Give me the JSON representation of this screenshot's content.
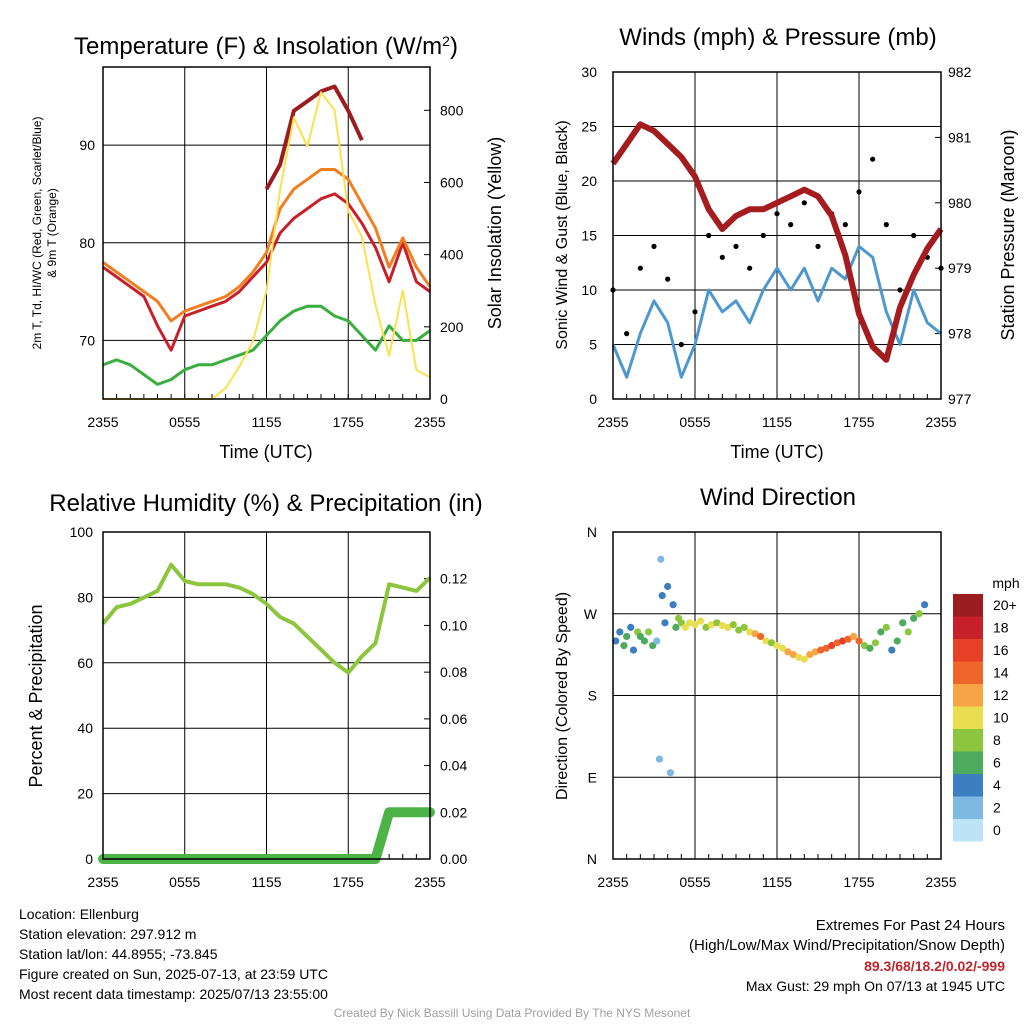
{
  "chart_data": [
    {
      "type": "line",
      "title": "Temperature (F) & Insolation (W/m²)",
      "title_main": "Temperature (F) & Insolation (W/m",
      "title_sup": "2",
      "title_end": ")",
      "xlabel": "Time (UTC)",
      "ylabel_left_line1": "2m T, Td, HI/WC (Red, Green, Scarlet/Blue)",
      "ylabel_left_line2": "& 9m T (Orange)",
      "ylabel_right": "Solar Insolation (Yellow)",
      "x_ticks": [
        "2355",
        "0555",
        "1155",
        "1755",
        "2355"
      ],
      "y_left_ticks": [
        70,
        80,
        90
      ],
      "y_left_range": [
        64,
        98
      ],
      "y_right_ticks": [
        0,
        200,
        400,
        600,
        800
      ],
      "y_right_range": [
        0,
        920
      ],
      "x_hours": [
        0,
        1,
        2,
        3,
        4,
        5,
        6,
        7,
        8,
        9,
        10,
        11,
        12,
        13,
        14,
        15,
        16,
        17,
        18,
        19,
        20,
        21,
        22,
        23,
        24
      ],
      "series": [
        {
          "name": "2m T",
          "color": "#c8202a",
          "axis": "left",
          "width": 3,
          "values": [
            77.5,
            76.5,
            75.5,
            74.5,
            71.5,
            69,
            72.5,
            73,
            73.5,
            74,
            75,
            76.5,
            78,
            81,
            82.5,
            83.5,
            84.5,
            85,
            84,
            82,
            79.5,
            76,
            80,
            76,
            75
          ]
        },
        {
          "name": "9m T",
          "color": "#f07f22",
          "axis": "left",
          "width": 3,
          "values": [
            78,
            77,
            76,
            75,
            74,
            72,
            73,
            73.5,
            74,
            74.5,
            75.5,
            77,
            79,
            83.5,
            85.5,
            86.5,
            87.5,
            87.5,
            86.5,
            84,
            81.5,
            77.5,
            80.5,
            77.5,
            75.5
          ]
        },
        {
          "name": "Heat Index",
          "color": "#9b1c1f",
          "axis": "left",
          "width": 4,
          "values": [
            null,
            null,
            null,
            null,
            null,
            null,
            null,
            null,
            null,
            null,
            null,
            null,
            85.5,
            88,
            93.5,
            94.5,
            95.5,
            96,
            93.5,
            90.5,
            null,
            null,
            null,
            85,
            null
          ]
        },
        {
          "name": "Dew Point",
          "color": "#3aae3f",
          "axis": "left",
          "width": 3,
          "values": [
            67.5,
            68,
            67.5,
            66.5,
            65.5,
            66,
            67,
            67.5,
            67.5,
            68,
            68.5,
            69,
            70.5,
            72,
            73,
            73.5,
            73.5,
            72.5,
            72,
            70.5,
            69,
            71.5,
            70,
            70,
            71
          ]
        },
        {
          "name": "Solar Insolation",
          "color": "#fbe150",
          "axis": "right",
          "width": 2,
          "values": [
            0,
            0,
            0,
            0,
            0,
            0,
            0,
            0,
            0,
            30,
            90,
            160,
            300,
            580,
            780,
            700,
            850,
            800,
            520,
            450,
            260,
            120,
            300,
            80,
            60
          ]
        }
      ]
    },
    {
      "type": "scatter",
      "title": "Winds (mph) & Pressure (mb)",
      "xlabel": "Time (UTC)",
      "ylabel_left": "Sonic Wind & Gust (Blue, Black)",
      "ylabel_right": "Station Pressure (Maroon)",
      "x_ticks": [
        "2355",
        "0555",
        "1155",
        "1755",
        "2355"
      ],
      "y_left_ticks": [
        0,
        5,
        10,
        15,
        20,
        25,
        30
      ],
      "y_left_range": [
        0,
        30
      ],
      "y_right_ticks": [
        977,
        978,
        979,
        980,
        981,
        982
      ],
      "y_right_range": [
        977,
        982
      ],
      "x_hours": [
        0,
        1,
        2,
        3,
        4,
        5,
        6,
        7,
        8,
        9,
        10,
        11,
        12,
        13,
        14,
        15,
        16,
        17,
        18,
        19,
        20,
        21,
        22,
        23,
        24
      ],
      "wind": [
        5,
        2,
        6,
        9,
        7,
        2,
        5,
        10,
        8,
        9,
        7,
        10,
        12,
        10,
        12,
        9,
        12,
        11,
        14,
        13,
        8,
        5,
        10,
        7,
        6
      ],
      "gust": [
        10,
        6,
        12,
        14,
        11,
        5,
        8,
        15,
        13,
        14,
        12,
        15,
        17,
        16,
        18,
        14,
        17,
        16,
        19,
        22,
        16,
        10,
        15,
        13,
        12
      ],
      "pressure": [
        980.6,
        980.9,
        981.2,
        981.1,
        980.9,
        980.7,
        980.4,
        979.9,
        979.6,
        979.8,
        979.9,
        979.9,
        980.0,
        980.1,
        980.2,
        980.1,
        979.8,
        979.2,
        978.3,
        977.8,
        977.6,
        978.4,
        978.9,
        979.3,
        979.6
      ]
    },
    {
      "type": "line",
      "title": "Relative Humidity (%) & Precipitation (in)",
      "ylabel_left": "Percent & Precipitation",
      "x_ticks": [
        "2355",
        "0555",
        "1155",
        "1755",
        "2355"
      ],
      "y_left_ticks": [
        0,
        20,
        40,
        60,
        80,
        100
      ],
      "y_left_range": [
        0,
        100
      ],
      "y_right_ticks": [
        "0.00",
        "0.02",
        "0.04",
        "0.06",
        "0.08",
        "0.10",
        "0.12"
      ],
      "y_right_range": [
        0,
        0.14
      ],
      "x_hours": [
        0,
        1,
        2,
        3,
        4,
        5,
        6,
        7,
        8,
        9,
        10,
        11,
        12,
        13,
        14,
        15,
        16,
        17,
        18,
        19,
        20,
        21,
        22,
        23,
        24
      ],
      "series": [
        {
          "name": "Relative Humidity",
          "color": "#8cc63f",
          "values": [
            72,
            77,
            78,
            80,
            82,
            90,
            85,
            84,
            84,
            84,
            83,
            81,
            78,
            74,
            72,
            68,
            64,
            60,
            57,
            62,
            66,
            84,
            83,
            82,
            86
          ]
        },
        {
          "name": "Precipitation",
          "color": "#4db347",
          "values": [
            0,
            0,
            0,
            0,
            0,
            0,
            0,
            0,
            0,
            0,
            0,
            0,
            0,
            0,
            0,
            0,
            0,
            0,
            0,
            0,
            0,
            0.02,
            0.02,
            0.02,
            0.02
          ]
        }
      ]
    },
    {
      "type": "scatter",
      "title": "Wind Direction",
      "ylabel": "Direction (Colored By Speed)",
      "x_ticks": [
        "2355",
        "0555",
        "1155",
        "1755",
        "2355"
      ],
      "y_ticks": [
        "N",
        "W",
        "S",
        "E",
        "N"
      ],
      "y_range_deg": [
        0,
        360
      ],
      "legend_title": "mph",
      "legend": [
        "20+",
        "18",
        "16",
        "14",
        "12",
        "10",
        "8",
        "6",
        "4",
        "2",
        "0"
      ],
      "legend_colors": [
        "#9b1c1f",
        "#c8202a",
        "#e64027",
        "#f0652a",
        "#f7a445",
        "#e8de50",
        "#8cc63f",
        "#4dab5e",
        "#3b7fc0",
        "#7eb9e2",
        "#bde4f6"
      ],
      "points": [
        [
          0.2,
          240,
          4
        ],
        [
          0.5,
          250,
          3
        ],
        [
          0.8,
          235,
          5
        ],
        [
          1.0,
          245,
          6
        ],
        [
          1.3,
          255,
          4
        ],
        [
          1.5,
          230,
          3
        ],
        [
          1.8,
          250,
          7
        ],
        [
          2.0,
          245,
          5
        ],
        [
          2.3,
          240,
          6
        ],
        [
          2.6,
          250,
          8
        ],
        [
          2.9,
          235,
          5
        ],
        [
          3.2,
          240,
          2
        ],
        [
          3.4,
          110,
          2
        ],
        [
          3.5,
          330,
          2
        ],
        [
          3.6,
          290,
          3
        ],
        [
          3.8,
          260,
          4
        ],
        [
          4.0,
          300,
          3
        ],
        [
          4.2,
          95,
          2
        ],
        [
          4.4,
          280,
          4
        ],
        [
          4.6,
          255,
          6
        ],
        [
          4.8,
          265,
          7
        ],
        [
          5.0,
          260,
          8
        ],
        [
          5.3,
          255,
          9
        ],
        [
          5.6,
          260,
          10
        ],
        [
          6.0,
          258,
          9
        ],
        [
          6.4,
          262,
          10
        ],
        [
          6.8,
          255,
          8
        ],
        [
          7.2,
          258,
          9
        ],
        [
          7.6,
          260,
          8
        ],
        [
          8.0,
          257,
          9
        ],
        [
          8.4,
          255,
          10
        ],
        [
          8.8,
          258,
          8
        ],
        [
          9.2,
          252,
          7
        ],
        [
          9.6,
          255,
          8
        ],
        [
          10.0,
          250,
          9
        ],
        [
          10.4,
          248,
          12
        ],
        [
          10.8,
          245,
          14
        ],
        [
          11.2,
          240,
          10
        ],
        [
          11.6,
          238,
          8
        ],
        [
          12.0,
          235,
          9
        ],
        [
          12.4,
          232,
          10
        ],
        [
          12.8,
          228,
          11
        ],
        [
          13.2,
          225,
          12
        ],
        [
          13.6,
          222,
          10
        ],
        [
          14.0,
          220,
          9
        ],
        [
          14.4,
          225,
          11
        ],
        [
          14.8,
          228,
          12
        ],
        [
          15.2,
          230,
          13
        ],
        [
          15.6,
          232,
          14
        ],
        [
          16.0,
          235,
          15
        ],
        [
          16.4,
          238,
          14
        ],
        [
          16.8,
          240,
          16
        ],
        [
          17.2,
          242,
          14
        ],
        [
          17.6,
          245,
          12
        ],
        [
          18.0,
          240,
          13
        ],
        [
          18.4,
          235,
          7
        ],
        [
          18.8,
          232,
          6
        ],
        [
          19.2,
          238,
          8
        ],
        [
          19.6,
          250,
          6
        ],
        [
          20.0,
          255,
          7
        ],
        [
          20.4,
          230,
          3
        ],
        [
          20.8,
          240,
          5
        ],
        [
          21.2,
          260,
          6
        ],
        [
          21.6,
          250,
          7
        ],
        [
          22.0,
          265,
          6
        ],
        [
          22.4,
          270,
          7
        ],
        [
          22.8,
          280,
          4
        ]
      ]
    }
  ],
  "footer": {
    "location": "Location: Ellenburg",
    "elevation": "Station elevation: 297.912 m",
    "latlon": "Station lat/lon: 44.8955; -73.845",
    "created": "Figure created on Sun, 2025-07-13, at 23:59 UTC",
    "recent": "Most recent data timestamp: 2025/07/13 23:55:00",
    "extremes_title": "Extremes For Past 24 Hours",
    "extremes_legend": "(High/Low/Max Wind/Precipitation/Snow Depth)",
    "extremes_values": "89.3/68/18.2/0.02/-999",
    "max_gust": "Max Gust: 29 mph On 07/13 at 1945 UTC",
    "credit": "Created By Nick Bassill Using Data Provided By The NYS Mesonet"
  }
}
